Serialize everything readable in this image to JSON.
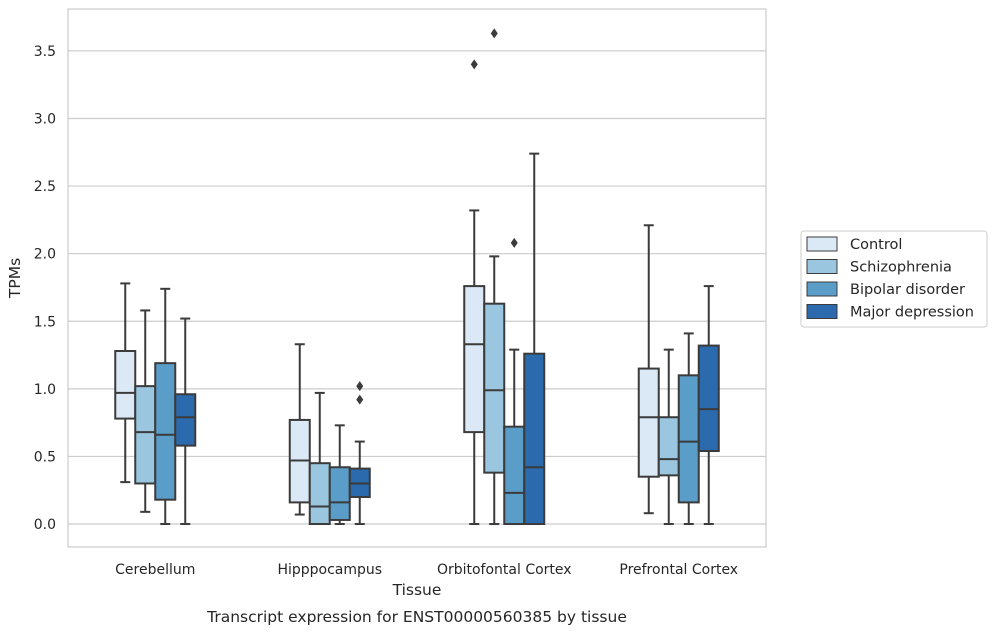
{
  "chart_data": {
    "type": "box",
    "title": "",
    "caption": "Transcript expression for ENST00000560385 by tissue",
    "xlabel": "Tissue",
    "ylabel": "TPMs",
    "ylim": [
      -0.17,
      3.81
    ],
    "yticks": [
      "0.0",
      "0.5",
      "1.0",
      "1.5",
      "2.0",
      "2.5",
      "3.0",
      "3.5"
    ],
    "grid": "horizontal",
    "legend_position": "right",
    "categories": [
      "Cerebellum",
      "Hipppocampus",
      "Orbitofontal Cortex",
      "Prefrontal Cortex"
    ],
    "series": [
      {
        "name": "Control",
        "color": "#dbe8f5",
        "boxes": [
          {
            "whislo": 0.31,
            "q1": 0.78,
            "med": 0.97,
            "q3": 1.28,
            "whishi": 1.78,
            "fliers": []
          },
          {
            "whislo": 0.07,
            "q1": 0.16,
            "med": 0.47,
            "q3": 0.77,
            "whishi": 1.33,
            "fliers": []
          },
          {
            "whislo": 0.0,
            "q1": 0.68,
            "med": 1.33,
            "q3": 1.76,
            "whishi": 2.32,
            "fliers": [
              3.4
            ]
          },
          {
            "whislo": 0.08,
            "q1": 0.35,
            "med": 0.79,
            "q3": 1.15,
            "whishi": 2.21,
            "fliers": []
          }
        ]
      },
      {
        "name": "Schizophrenia",
        "color": "#9ac6df",
        "boxes": [
          {
            "whislo": 0.09,
            "q1": 0.3,
            "med": 0.68,
            "q3": 1.02,
            "whishi": 1.58,
            "fliers": []
          },
          {
            "whislo": 0.0,
            "q1": 0.0,
            "med": 0.13,
            "q3": 0.45,
            "whishi": 0.97,
            "fliers": []
          },
          {
            "whislo": 0.0,
            "q1": 0.38,
            "med": 0.99,
            "q3": 1.63,
            "whishi": 1.98,
            "fliers": [
              3.63
            ]
          },
          {
            "whislo": 0.0,
            "q1": 0.36,
            "med": 0.48,
            "q3": 0.79,
            "whishi": 1.29,
            "fliers": []
          }
        ]
      },
      {
        "name": "Bipolar disorder",
        "color": "#5b9dc9",
        "boxes": [
          {
            "whislo": 0.0,
            "q1": 0.18,
            "med": 0.66,
            "q3": 1.19,
            "whishi": 1.74,
            "fliers": []
          },
          {
            "whislo": 0.0,
            "q1": 0.03,
            "med": 0.16,
            "q3": 0.42,
            "whishi": 0.73,
            "fliers": []
          },
          {
            "whislo": 0.0,
            "q1": 0.0,
            "med": 0.23,
            "q3": 0.72,
            "whishi": 1.29,
            "fliers": [
              2.08
            ]
          },
          {
            "whislo": 0.0,
            "q1": 0.16,
            "med": 0.61,
            "q3": 1.1,
            "whishi": 1.41,
            "fliers": []
          }
        ]
      },
      {
        "name": "Major depression",
        "color": "#2a6aad",
        "boxes": [
          {
            "whislo": 0.0,
            "q1": 0.58,
            "med": 0.79,
            "q3": 0.96,
            "whishi": 1.52,
            "fliers": []
          },
          {
            "whislo": 0.0,
            "q1": 0.2,
            "med": 0.3,
            "q3": 0.41,
            "whishi": 0.61,
            "fliers": [
              0.92,
              1.02
            ]
          },
          {
            "whislo": 0.0,
            "q1": 0.0,
            "med": 0.42,
            "q3": 1.26,
            "whishi": 2.74,
            "fliers": []
          },
          {
            "whislo": 0.0,
            "q1": 0.54,
            "med": 0.85,
            "q3": 1.32,
            "whishi": 1.76,
            "fliers": []
          }
        ]
      }
    ]
  }
}
